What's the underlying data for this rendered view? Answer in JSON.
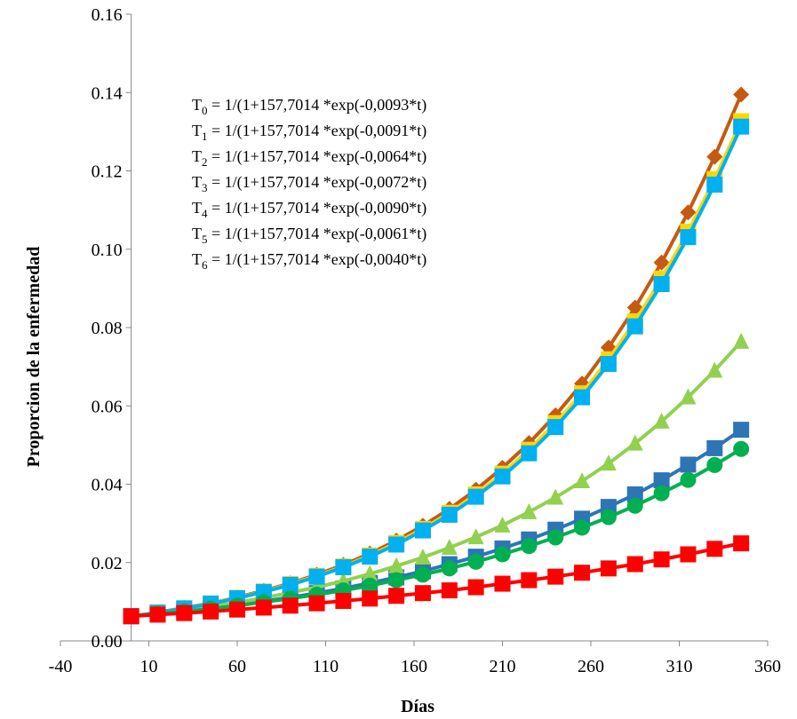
{
  "chart_data": {
    "type": "line",
    "xlabel": "Días",
    "ylabel": "Proporcion de la enfermedad",
    "xlim": [
      -40,
      360
    ],
    "ylim": [
      0,
      0.16
    ],
    "x_ticks": [
      -40,
      10,
      60,
      110,
      160,
      210,
      260,
      310,
      360
    ],
    "y_ticks": [
      0.0,
      0.02,
      0.04,
      0.06,
      0.08,
      0.1,
      0.12,
      0.14,
      0.16
    ],
    "x_tick_labels": [
      "-40",
      "10",
      "60",
      "110",
      "160",
      "210",
      "260",
      "310",
      "360"
    ],
    "y_tick_labels": [
      "0.00",
      "0.02",
      "0.04",
      "0.06",
      "0.08",
      "0.10",
      "0.12",
      "0.14",
      "0.16"
    ],
    "x": [
      0,
      15,
      30,
      45,
      60,
      75,
      90,
      105,
      120,
      135,
      150,
      165,
      180,
      195,
      210,
      225,
      240,
      255,
      270,
      285,
      300,
      315,
      330,
      345
    ],
    "grid": false,
    "annotation_lines": [
      {
        "base": "T",
        "sub": "0",
        "text": " = 1/(1+157,7014 *exp(-0,0093*t)"
      },
      {
        "base": "T",
        "sub": "1",
        "text": " = 1/(1+157,7014 *exp(-0,0091*t)"
      },
      {
        "base": "T",
        "sub": "2",
        "text": " = 1/(1+157,7014 *exp(-0,0064*t)"
      },
      {
        "base": "T",
        "sub": "3",
        "text": " = 1/(1+157,7014 *exp(-0,0072*t)"
      },
      {
        "base": "T",
        "sub": "4",
        "text": " = 1/(1+157,7014 *exp(-0,0090*t)"
      },
      {
        "base": "T",
        "sub": "5",
        "text": " = 1/(1+157,7014 *exp(-0,0061*t)"
      },
      {
        "base": "T",
        "sub": "6",
        "text": " = 1/(1+157,7014 *exp(-0,0040*t)"
      }
    ],
    "series": [
      {
        "color": "#C55A11",
        "marker": "diamond",
        "values": [
          0.0063,
          0.0073,
          0.0084,
          0.0096,
          0.0111,
          0.0128,
          0.0147,
          0.0169,
          0.0194,
          0.0223,
          0.0256,
          0.0294,
          0.0337,
          0.0386,
          0.0442,
          0.0505,
          0.0576,
          0.0657,
          0.0749,
          0.0851,
          0.0966,
          0.1094,
          0.1236,
          0.1395
        ]
      },
      {
        "color": "#FFD700",
        "marker": "square",
        "values": [
          0.0063,
          0.0073,
          0.0083,
          0.0096,
          0.011,
          0.0126,
          0.0145,
          0.0166,
          0.019,
          0.0218,
          0.025,
          0.0286,
          0.0327,
          0.0374,
          0.0427,
          0.0488,
          0.0556,
          0.0632,
          0.0719,
          0.0816,
          0.0925,
          0.1045,
          0.1179,
          0.1327
        ]
      },
      {
        "color": "#2E75B6",
        "marker": "square",
        "values": [
          0.0063,
          0.0069,
          0.0076,
          0.0083,
          0.0092,
          0.0101,
          0.0111,
          0.0122,
          0.0134,
          0.0148,
          0.0162,
          0.0178,
          0.0196,
          0.0215,
          0.0236,
          0.0259,
          0.0284,
          0.0312,
          0.0342,
          0.0374,
          0.041,
          0.045,
          0.0492,
          0.0539
        ]
      },
      {
        "color": "#92D050",
        "marker": "triangle",
        "values": [
          0.0063,
          0.0071,
          0.0079,
          0.0088,
          0.0098,
          0.011,
          0.0123,
          0.0137,
          0.0153,
          0.0171,
          0.0191,
          0.0213,
          0.0238,
          0.0265,
          0.0295,
          0.0329,
          0.0366,
          0.0408,
          0.0453,
          0.0504,
          0.056,
          0.0622,
          0.069,
          0.0764
        ]
      },
      {
        "color": "#00B0F0",
        "marker": "square",
        "values": [
          0.0063,
          0.0072,
          0.0083,
          0.0095,
          0.0109,
          0.0125,
          0.0143,
          0.0164,
          0.0188,
          0.0215,
          0.0246,
          0.0282,
          0.0322,
          0.0368,
          0.042,
          0.0479,
          0.0546,
          0.0622,
          0.0707,
          0.0803,
          0.0911,
          0.1031,
          0.1165,
          0.1313
        ]
      },
      {
        "color": "#00B050",
        "marker": "circle",
        "values": [
          0.0063,
          0.0069,
          0.0075,
          0.0082,
          0.009,
          0.0099,
          0.0108,
          0.0118,
          0.0129,
          0.0141,
          0.0155,
          0.0169,
          0.0185,
          0.0202,
          0.0221,
          0.0242,
          0.0264,
          0.0289,
          0.0316,
          0.0345,
          0.0377,
          0.0411,
          0.0449,
          0.049
        ]
      },
      {
        "color": "#FF0000",
        "marker": "square",
        "values": [
          0.0063,
          0.0067,
          0.0071,
          0.0075,
          0.008,
          0.0085,
          0.009,
          0.0096,
          0.0102,
          0.0108,
          0.0115,
          0.0122,
          0.0129,
          0.0137,
          0.0146,
          0.0155,
          0.0164,
          0.0174,
          0.0185,
          0.0196,
          0.0208,
          0.0221,
          0.0235,
          0.0249
        ]
      }
    ]
  }
}
